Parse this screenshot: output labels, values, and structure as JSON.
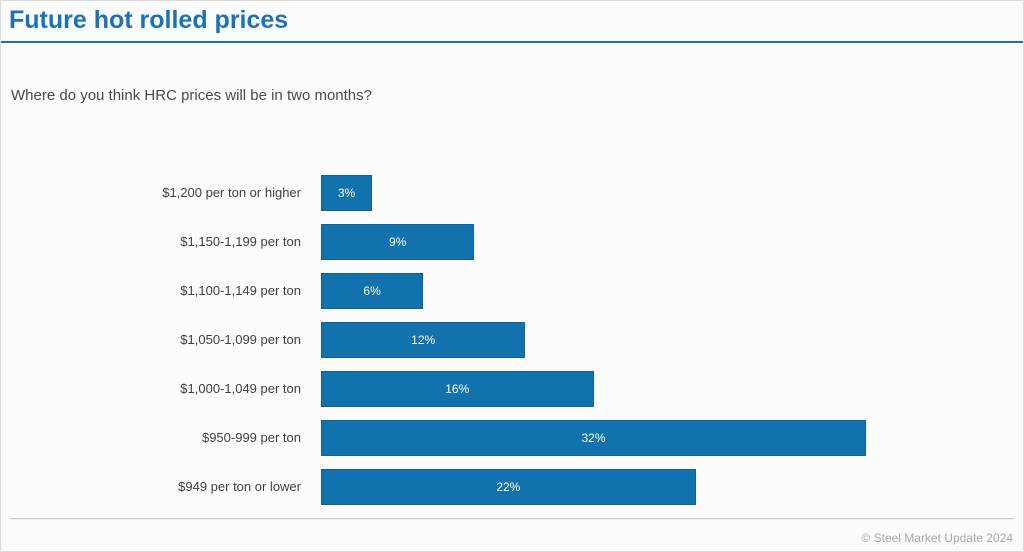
{
  "page": {
    "title": "Future hot rolled prices",
    "question": "Where do you think HRC prices will be in two months?",
    "footer": "© Steel Market Update 2024"
  },
  "colors": {
    "title": "#1a73b5",
    "bar": "#1172ad",
    "divider": "#c9c9c9",
    "footer_text": "#a7a7a7"
  },
  "chart_data": {
    "type": "bar",
    "orientation": "horizontal",
    "title": "Future hot rolled prices",
    "subtitle": "Where do you think HRC prices will be in two months?",
    "categories": [
      "$1,200 per ton or higher",
      "$1,150-1,199 per ton",
      "$1,100-1,149 per ton",
      "$1,050-1,099 per ton",
      "$1,000-1,049 per ton",
      "$950-999 per ton",
      "$949 per ton or lower"
    ],
    "values": [
      3,
      9,
      6,
      12,
      16,
      32,
      22
    ],
    "value_labels": [
      "3%",
      "9%",
      "6%",
      "12%",
      "16%",
      "32%",
      "22%"
    ],
    "xlabel": "",
    "ylabel": "",
    "xlim": [
      0,
      32
    ],
    "grid": false,
    "legend": false,
    "bar_color": "#1172ad"
  }
}
